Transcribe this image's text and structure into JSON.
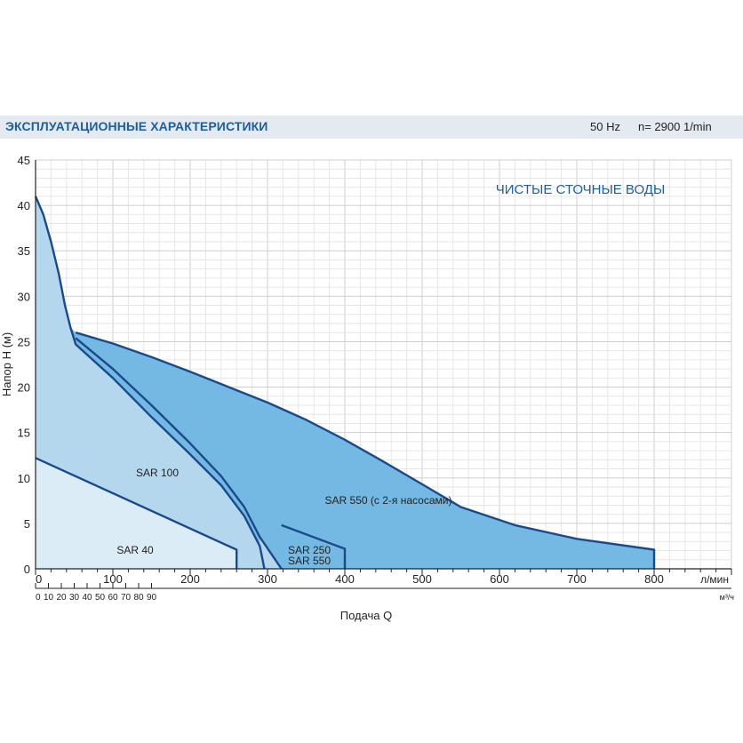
{
  "header": {
    "title": "ЭКСПЛУАТАЦИОННЫЕ ХАРАКТЕРИСТИКИ",
    "frequency": "50 Hz",
    "speed": "n= 2900  1/min"
  },
  "colors": {
    "header_bg": "#e4eaef",
    "title_text": "#1f5e9a",
    "curve_line": "#1a4a8a",
    "fill_sar40": "#dcecf7",
    "fill_sar100": "#b5d7ee",
    "fill_sar550": "#74b9e3",
    "grid": "#cfcfcf"
  },
  "chart_data": {
    "type": "area",
    "title": "ЧИСТЫЕ СТОЧНЫЕ ВОДЫ",
    "xlabel": "Подача Q",
    "ylabel": "Напор H (м)",
    "x_unit": "л/мин",
    "x2_unit": "м³/ч",
    "xlim": [
      0,
      900
    ],
    "ylim": [
      0,
      45
    ],
    "x_ticks": [
      "0",
      "100",
      "200",
      "300",
      "400",
      "500",
      "600",
      "700",
      "800"
    ],
    "x2_ticks": [
      "0",
      "10",
      "20",
      "30",
      "40",
      "50",
      "60",
      "70",
      "80",
      "90"
    ],
    "y_ticks": [
      "0",
      "5",
      "10",
      "15",
      "20",
      "25",
      "30",
      "35",
      "40",
      "45"
    ],
    "grid": true,
    "series": [
      {
        "name": "SAR 40",
        "label": "SAR 40",
        "points": [
          [
            0,
            12.2
          ],
          [
            260,
            2.1
          ],
          [
            260,
            0
          ]
        ]
      },
      {
        "name": "SAR 100",
        "label": "SAR 100",
        "points": [
          [
            0,
            41
          ],
          [
            10,
            39
          ],
          [
            20,
            36
          ],
          [
            30,
            32.5
          ],
          [
            38,
            29
          ],
          [
            45,
            26.6
          ],
          [
            52,
            24.7
          ],
          [
            100,
            21
          ],
          [
            150,
            16.7
          ],
          [
            200,
            12.6
          ],
          [
            240,
            9.2
          ],
          [
            270,
            5.8
          ],
          [
            290,
            2.5
          ],
          [
            296,
            0
          ]
        ]
      },
      {
        "name": "SAR 250",
        "label": "SAR 250",
        "points": [
          [
            52,
            25.4
          ],
          [
            100,
            22
          ],
          [
            150,
            18
          ],
          [
            200,
            13.8
          ],
          [
            240,
            10.2
          ],
          [
            270,
            6.8
          ],
          [
            290,
            3.5
          ],
          [
            318,
            0
          ]
        ]
      },
      {
        "name": "SAR 550",
        "label": "SAR 550",
        "points": [
          [
            52,
            26
          ],
          [
            100,
            24.8
          ],
          [
            150,
            23.3
          ],
          [
            200,
            21.7
          ],
          [
            250,
            20
          ],
          [
            300,
            18.3
          ],
          [
            350,
            16.4
          ],
          [
            400,
            14.2
          ],
          [
            450,
            11.8
          ],
          [
            500,
            9.3
          ],
          [
            550,
            6.8
          ],
          [
            620,
            4.8
          ],
          [
            700,
            3.3
          ],
          [
            800,
            2.1
          ],
          [
            800,
            0
          ]
        ]
      },
      {
        "name": "SAR 550 (с 2-я насосами)",
        "label": "SAR 550 (с 2-я насосами)",
        "points": [
          [
            318,
            4.8
          ],
          [
            400,
            2.2
          ],
          [
            400,
            0
          ]
        ]
      }
    ],
    "annotations": [
      "SAR 250",
      "SAR 550"
    ]
  }
}
